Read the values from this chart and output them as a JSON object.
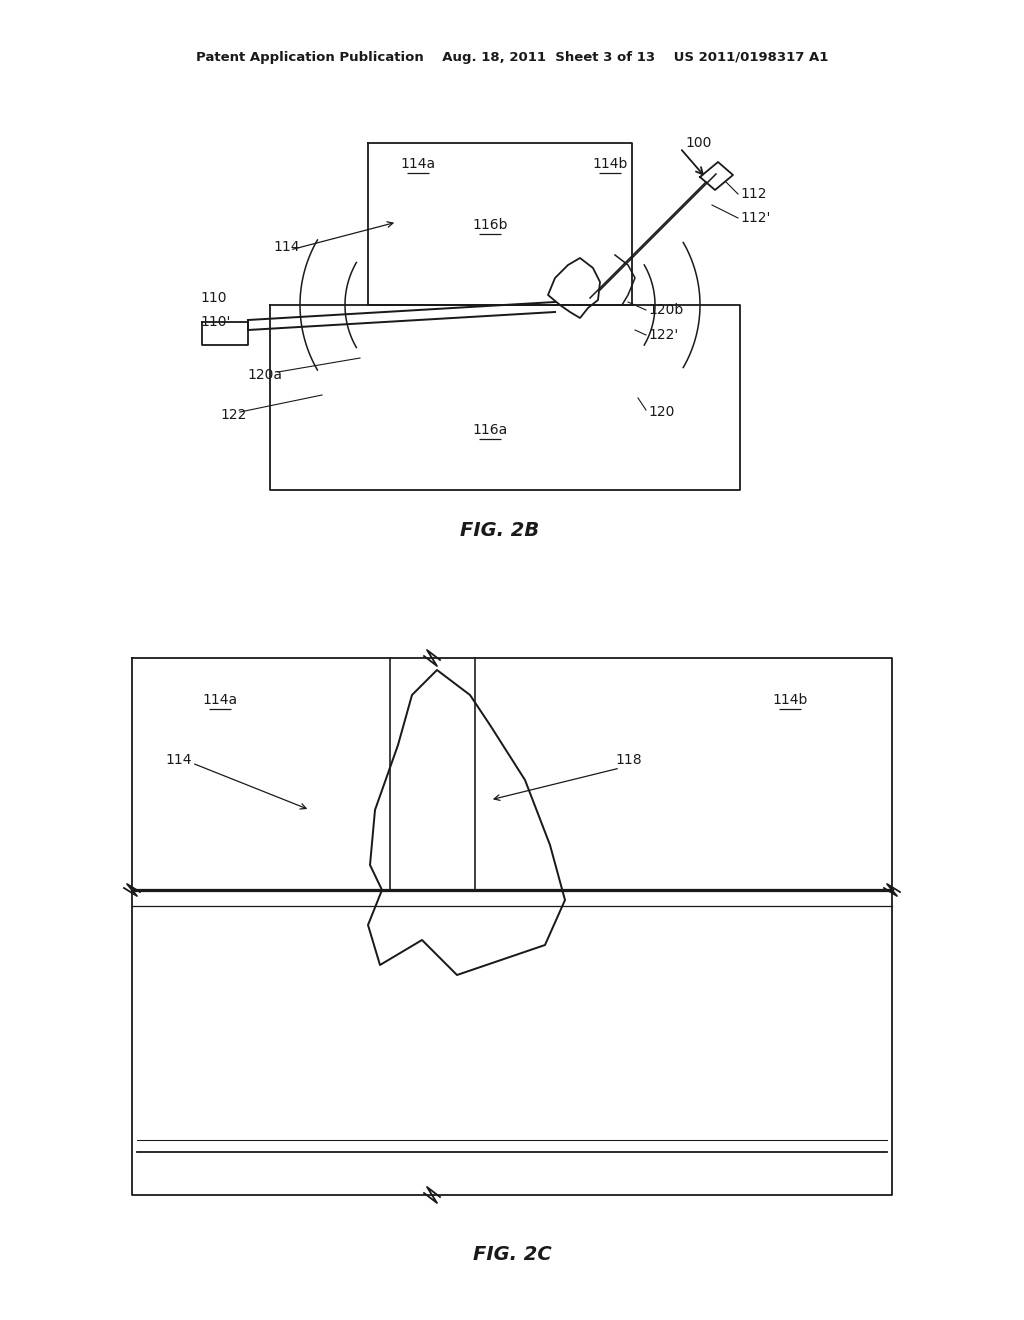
{
  "bg_color": "#ffffff",
  "line_color": "#1a1a1a",
  "header": "Patent Application Publication    Aug. 18, 2011  Sheet 3 of 13    US 2011/0198317 A1",
  "fig2b_caption": "FIG. 2B",
  "fig2c_caption": "FIG. 2C"
}
